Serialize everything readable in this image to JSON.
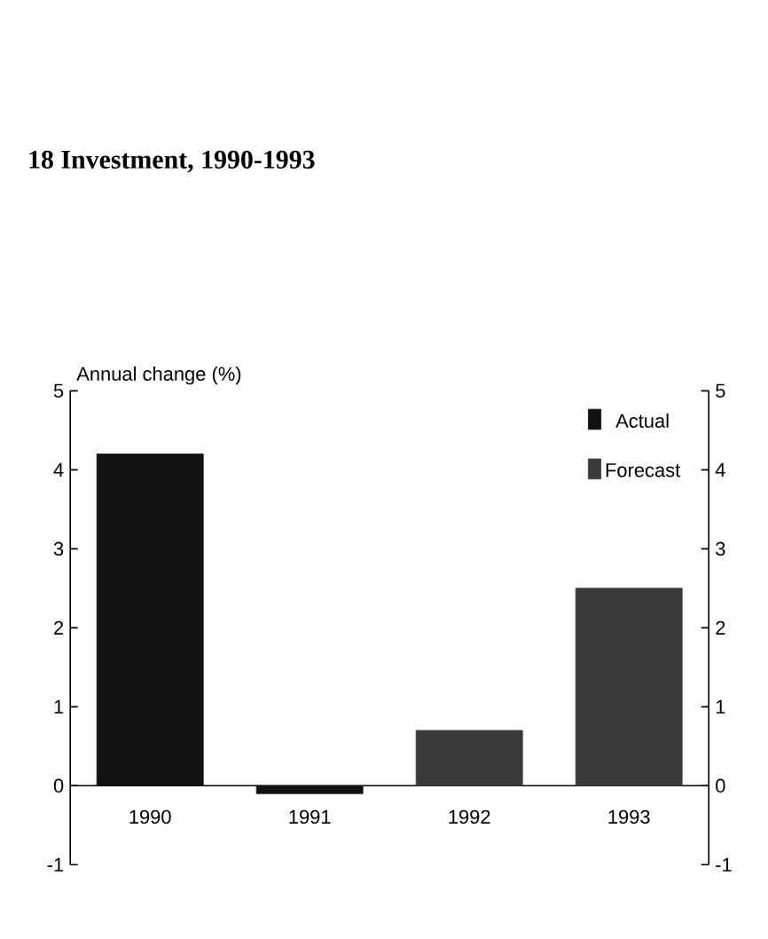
{
  "chart_data": {
    "type": "bar",
    "title": "18  Investment, 1990-1993",
    "ylabel": "Annual change (%)",
    "categories": [
      "1990",
      "1991",
      "1992",
      "1993"
    ],
    "series": [
      {
        "name": "Actual",
        "color": "#111111",
        "values": [
          4.2,
          -0.1,
          null,
          null
        ]
      },
      {
        "name": "Forecast",
        "color": "#3a3a3a",
        "values": [
          null,
          null,
          0.7,
          2.5
        ]
      }
    ],
    "ylim": [
      -1,
      5
    ],
    "yticks": [
      -1,
      0,
      1,
      2,
      3,
      4,
      5
    ],
    "y2lim": [
      -1,
      5
    ],
    "y2ticks": [
      -1,
      0,
      1,
      2,
      3,
      4,
      5
    ],
    "legend": "top right"
  }
}
